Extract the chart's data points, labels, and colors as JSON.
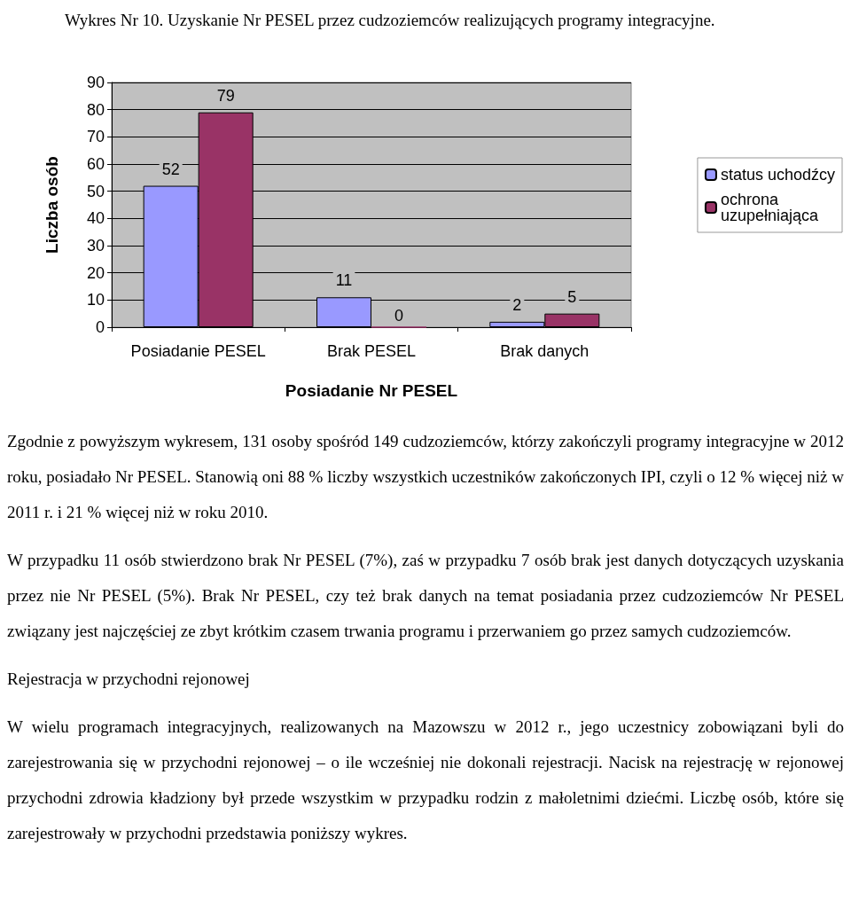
{
  "chart_data": {
    "type": "bar",
    "title": "Wykres Nr 10. Uzyskanie Nr PESEL przez cudzoziemców realizujących programy integracyjne.",
    "xlabel": "Posiadanie Nr PESEL",
    "ylabel": "Liczba osób",
    "categories": [
      "Posiadanie PESEL",
      "Brak PESEL",
      "Brak danych"
    ],
    "series": [
      {
        "name": "status uchodźcy",
        "color": "#9999ff",
        "values": [
          52,
          11,
          2
        ]
      },
      {
        "name": "ochrona uzupełniająca",
        "color": "#993366",
        "values": [
          79,
          0,
          5
        ]
      }
    ],
    "ylim": [
      0,
      90
    ],
    "yticks": [
      0,
      10,
      20,
      30,
      40,
      50,
      60,
      70,
      80,
      90
    ],
    "grid": "y",
    "legend": "right",
    "data_labels": true,
    "annotations": [
      "Zgodnie z powyższym wykresem, 131 osoby spośród 149 cudzoziemców, którzy zakończyli programy integracyjne w 2012 roku, posiadało Nr PESEL. Stanowią oni 88 % liczby wszystkich uczestników zakończonych IPI, czyli o 12 % więcej niż w 2011 r. i 21 % więcej niż w roku 2010.",
      "W przypadku 11 osób stwierdzono brak Nr PESEL (7%), zaś w przypadku 7 osób brak jest danych dotyczących uzyskania przez nie Nr PESEL (5%). Brak Nr PESEL, czy też brak danych na temat posiadania przez cudzoziemców Nr PESEL związany jest najczęściej ze zbyt krótkim czasem trwania programu i przerwaniem go przez samych cudzoziemców.",
      "Rejestracja w przychodni rejonowej",
      "W wielu programach integracyjnych, realizowanych na Mazowszu w 2012 r., jego uczestnicy zobowiązani byli do zarejestrowania się w przychodni rejonowej – o ile wcześniej nie dokonali rejestracji. Nacisk na rejestrację w rejonowej przychodni zdrowia kładziony był przede wszystkim w przypadku rodzin z małoletnimi dziećmi. Liczbę osób, które się zarejestrowały w przychodni przedstawia poniższy wykres."
    ]
  }
}
